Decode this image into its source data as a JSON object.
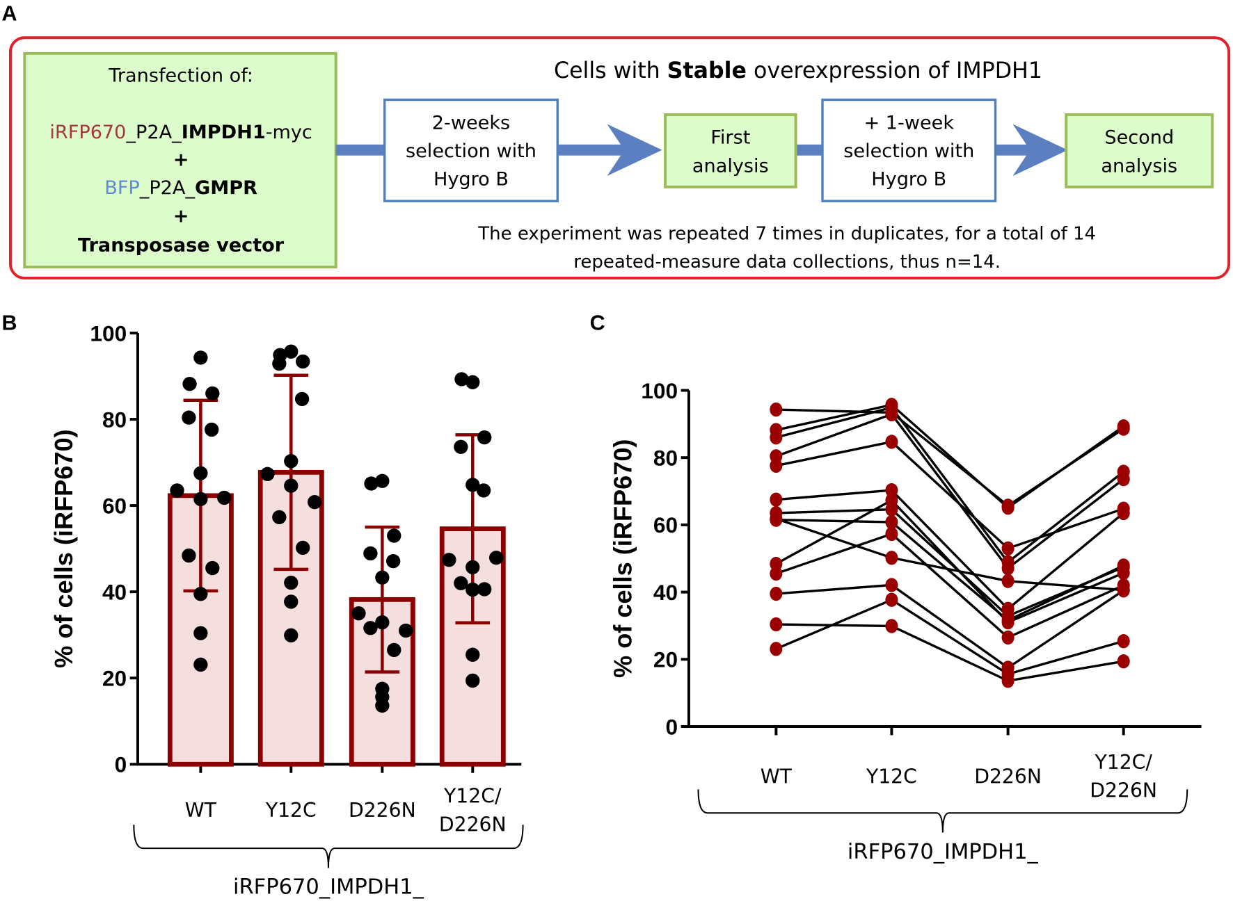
{
  "panel_labels": {
    "a": "A",
    "b": "B",
    "c": "C"
  },
  "panel_a": {
    "transfection": {
      "title": "Transfection of:",
      "line1": [
        {
          "t": "iRFP670",
          "color": "#a33a3a",
          "bold": false
        },
        {
          "t": "_P2A_",
          "bold": false
        },
        {
          "t": "IMPDH1",
          "bold": true
        },
        {
          "t": "-myc",
          "bold": false
        }
      ],
      "plus": "+",
      "line2": [
        {
          "t": "BFP",
          "color": "#5b8ad6",
          "bold": false
        },
        {
          "t": "_P2A_",
          "bold": false
        },
        {
          "t": "GMPR",
          "bold": true
        }
      ],
      "line3": "Transposase vector"
    },
    "header": {
      "pre": "Cells with ",
      "bold": "Stable",
      "post": " overexpression of IMPDH1"
    },
    "step1": [
      "2-weeks",
      "selection with",
      "Hygro B"
    ],
    "step2": [
      "First",
      "analysis"
    ],
    "step3": [
      "+ 1-week",
      "selection with",
      "Hygro B"
    ],
    "step4": [
      "Second",
      "analysis"
    ],
    "note": [
      "The experiment was repeated 7 times in duplicates, for a total of 14",
      "repeated-measure data collections, thus n=14."
    ],
    "colors": {
      "frame": "#e0202a",
      "green_fill": "#dcfccc",
      "green_border": "#9bbb59",
      "blue_border": "#4f7fc0",
      "arrow": "#5b7fc0"
    }
  },
  "chart_data": [
    {
      "type": "bar",
      "title": "",
      "ylabel": "% of cells (iRFP670)",
      "xlabel": "iRFP670_IMPDH1_",
      "ylim": [
        0,
        100
      ],
      "yticks": [
        "0",
        "20",
        "40",
        "60",
        "80",
        "100"
      ],
      "categories": [
        [
          "WT"
        ],
        [
          "Y12C"
        ],
        [
          "D226N"
        ],
        [
          "Y12C/",
          "D226N"
        ]
      ],
      "means": [
        62.3,
        67.7,
        38.2,
        54.6
      ],
      "sd": [
        22.1,
        22.5,
        16.8,
        21.8
      ],
      "points": [
        [
          94.3,
          88.2,
          86.0,
          80.4,
          77.6,
          67.5,
          63.5,
          61.5,
          61.8,
          48.4,
          45.5,
          39.5,
          30.4,
          23.1
        ],
        [
          95.7,
          94.9,
          93.4,
          92.9,
          84.7,
          70.3,
          67.3,
          64.6,
          60.8,
          57.3,
          50.2,
          42.1,
          37.7,
          29.9
        ],
        [
          65.7,
          65.1,
          53.0,
          48.9,
          47.1,
          43.3,
          35.0,
          32.9,
          31.0,
          31.6,
          26.5,
          17.5,
          15.6,
          13.6
        ],
        [
          88.6,
          89.3,
          75.8,
          73.6,
          63.5,
          64.8,
          47.4,
          45.7,
          47.9,
          42.0,
          40.6,
          40.5,
          25.4,
          19.4
        ]
      ],
      "colors": {
        "bar_fill": "#f5dede",
        "bar_edge": "#8b0000",
        "point": "#000000"
      }
    },
    {
      "type": "line",
      "title": "",
      "ylabel": "% of cells (iRFP670)",
      "xlabel": "iRFP670_IMPDH1_",
      "ylim": [
        0,
        100
      ],
      "yticks": [
        "0",
        "20",
        "40",
        "60",
        "80",
        "100"
      ],
      "categories": [
        [
          "WT"
        ],
        [
          "Y12C"
        ],
        [
          "D226N"
        ],
        [
          "Y12C/",
          "D226N"
        ]
      ],
      "series": [
        [
          94.3,
          93.4,
          65.7,
          88.6
        ],
        [
          88.2,
          95.7,
          65.1,
          89.3
        ],
        [
          86.0,
          94.9,
          48.9,
          75.8
        ],
        [
          80.4,
          92.9,
          47.1,
          73.6
        ],
        [
          77.6,
          84.7,
          53.0,
          64.8
        ],
        [
          67.5,
          70.3,
          35.0,
          63.5
        ],
        [
          63.5,
          64.6,
          32.9,
          47.4
        ],
        [
          61.5,
          60.8,
          31.6,
          47.9
        ],
        [
          48.4,
          67.3,
          31.0,
          45.7
        ],
        [
          45.5,
          57.3,
          26.5,
          42.0
        ],
        [
          61.8,
          50.2,
          43.3,
          40.6
        ],
        [
          39.5,
          42.1,
          17.5,
          40.5
        ],
        [
          30.4,
          29.9,
          13.6,
          19.4
        ],
        [
          23.1,
          37.7,
          15.6,
          25.4
        ]
      ],
      "colors": {
        "point": "#9b0000",
        "line": "#000000"
      }
    }
  ]
}
